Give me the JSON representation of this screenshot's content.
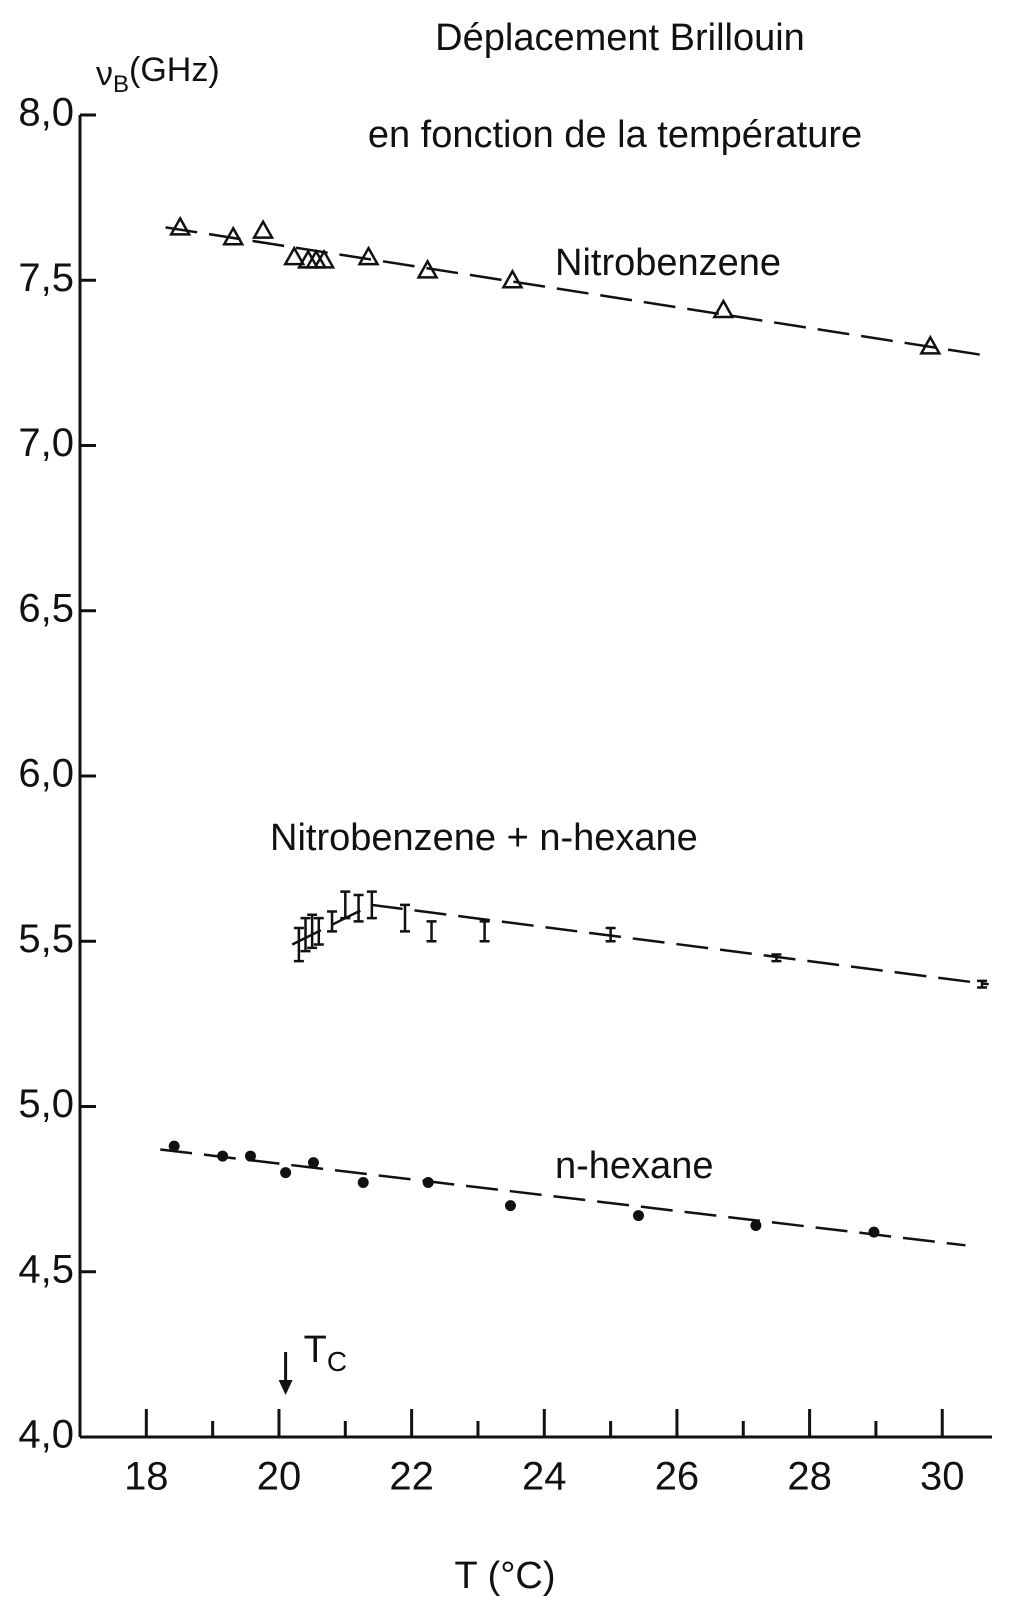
{
  "chart_data": {
    "type": "scatter",
    "title": "Déplacement Brillouin",
    "subtitle": "en fonction de la température",
    "ylabel": "ν",
    "ylabel_sub": "B",
    "ylabel_unit": "(GHz)",
    "xlabel": "T (°C)",
    "xlim": [
      17,
      30.75
    ],
    "ylim": [
      4,
      8
    ],
    "xticks": [
      18,
      20,
      22,
      24,
      26,
      28,
      30
    ],
    "xminor_ticks": [
      19,
      21,
      23,
      25,
      27,
      29
    ],
    "yticks": [
      {
        "value": 4,
        "label": "4,0"
      },
      {
        "value": 4.5,
        "label": "4,5"
      },
      {
        "value": 5,
        "label": "5,0"
      },
      {
        "value": 5.5,
        "label": "5,5"
      },
      {
        "value": 6,
        "label": "6,0"
      },
      {
        "value": 6.5,
        "label": "6,5"
      },
      {
        "value": 7,
        "label": "7,0"
      },
      {
        "value": 7.5,
        "label": "7,5"
      },
      {
        "value": 8,
        "label": "8,0"
      }
    ],
    "color": "#111111",
    "tc": {
      "label": "T",
      "subscript": "C",
      "x": 20.1
    },
    "series": [
      {
        "name": "Nitrobenzene",
        "marker": "triangle",
        "x": [
          18.51,
          19.31,
          19.76,
          20.23,
          20.44,
          20.56,
          20.68,
          21.35,
          22.24,
          23.52,
          26.7,
          29.82
        ],
        "values": [
          7.66,
          7.63,
          7.65,
          7.57,
          7.56,
          7.56,
          7.56,
          7.57,
          7.53,
          7.5,
          7.41,
          7.3
        ],
        "fit": {
          "x": [
            18.29,
            30.73
          ],
          "values": [
            7.66,
            7.27
          ]
        }
      },
      {
        "name": "Nitrobenzene + n-hexane",
        "marker": "errorbar",
        "x": [
          20.3,
          20.4,
          20.5,
          20.6,
          20.8,
          21.0,
          21.2,
          21.4,
          21.9,
          22.3,
          23.1,
          25.0,
          27.5,
          30.6
        ],
        "values": [
          5.49,
          5.52,
          5.53,
          5.53,
          5.56,
          5.61,
          5.6,
          5.61,
          5.57,
          5.53,
          5.53,
          5.52,
          5.45,
          5.37
        ],
        "errors": [
          0.05,
          0.05,
          0.05,
          0.04,
          0.03,
          0.04,
          0.04,
          0.04,
          0.04,
          0.03,
          0.03,
          0.02,
          0.01,
          0.01
        ],
        "fit": {
          "x": [
            20.2,
            21.4,
            30.7
          ],
          "values": [
            5.49,
            5.61,
            5.37
          ]
        }
      },
      {
        "name": "n-hexane",
        "marker": "dot",
        "x": [
          18.42,
          19.15,
          19.57,
          20.1,
          20.52,
          21.27,
          22.25,
          23.49,
          25.42,
          27.19,
          28.97
        ],
        "values": [
          4.88,
          4.85,
          4.85,
          4.8,
          4.83,
          4.77,
          4.77,
          4.7,
          4.67,
          4.64,
          4.62
        ],
        "fit": {
          "x": [
            18.21,
            30.35
          ],
          "values": [
            4.87,
            4.58
          ]
        }
      }
    ]
  }
}
